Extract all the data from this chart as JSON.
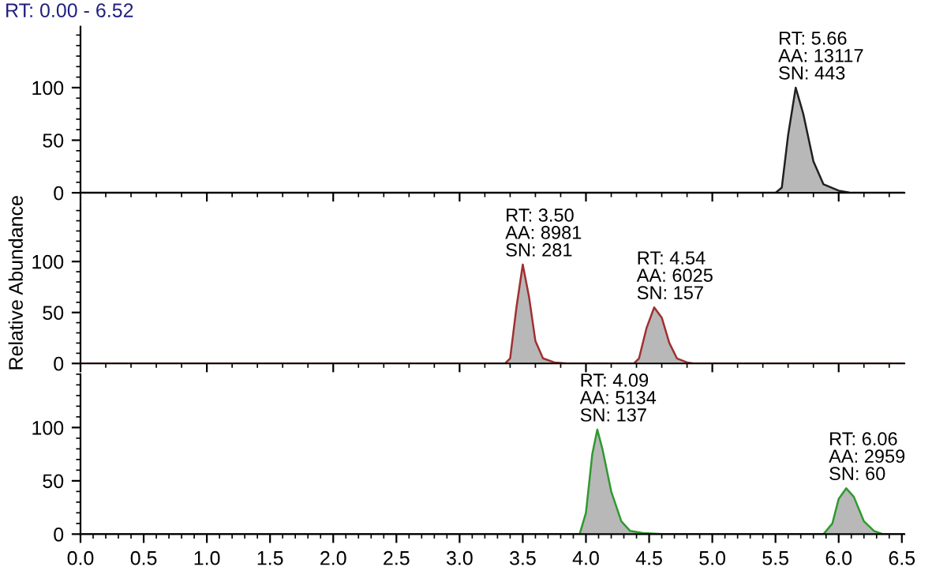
{
  "chart_data": [
    {
      "type": "area",
      "title": "RT: 0.00 - 6.52",
      "x": [
        0,
        5.5,
        5.55,
        5.6,
        5.66,
        5.72,
        5.8,
        5.88,
        6.0,
        6.1,
        6.52
      ],
      "series": [
        {
          "color": "#202020",
          "values": [
            0,
            0,
            5,
            55,
            100,
            75,
            30,
            8,
            2,
            0,
            0
          ]
        }
      ],
      "xlim": [
        0,
        6.52
      ],
      "ylim": [
        0,
        158
      ],
      "yticks": [
        0,
        50,
        100
      ],
      "tick_labels": "y",
      "grid": false,
      "annotations": [
        {
          "text": "RT: 5.66\nAA: 13117\nSN: 443",
          "x": 5.66,
          "y": 100
        }
      ]
    },
    {
      "type": "area",
      "ylabel": "Relative Abundance",
      "x": [
        0,
        3.36,
        3.4,
        3.45,
        3.5,
        3.55,
        3.6,
        3.66,
        3.75,
        3.85,
        4.38,
        4.42,
        4.48,
        4.54,
        4.6,
        4.66,
        4.72,
        4.8,
        4.85,
        6.52
      ],
      "series": [
        {
          "color": "#a03030",
          "values": [
            0,
            0,
            5,
            55,
            97,
            65,
            22,
            5,
            1,
            0,
            0,
            5,
            35,
            55,
            45,
            20,
            5,
            1,
            0,
            0
          ]
        }
      ],
      "xlim": [
        0,
        6.52
      ],
      "ylim": [
        0,
        158
      ],
      "yticks": [
        0,
        50,
        100
      ],
      "tick_labels": "y",
      "grid": false,
      "annotations": [
        {
          "text": "RT: 3.50\nAA: 8981\nSN: 281",
          "x": 3.5,
          "y": 97
        },
        {
          "text": "RT: 4.54\nAA: 6025\nSN: 157",
          "x": 4.54,
          "y": 55
        }
      ]
    },
    {
      "type": "area",
      "x": [
        0,
        3.95,
        4.0,
        4.05,
        4.09,
        4.13,
        4.2,
        4.28,
        4.35,
        4.45,
        4.6,
        5.88,
        5.95,
        6.0,
        6.06,
        6.12,
        6.2,
        6.28,
        6.35,
        6.52
      ],
      "series": [
        {
          "color": "#2e9a2e",
          "values": [
            0,
            0,
            20,
            75,
            98,
            80,
            40,
            12,
            3,
            1,
            0,
            0,
            10,
            33,
            43,
            35,
            12,
            3,
            0,
            0
          ]
        }
      ],
      "xlim": [
        0,
        6.52
      ],
      "xticks": [
        {
          "value": 0,
          "label": "0.0"
        },
        0.5,
        {
          "value": 1,
          "label": "1.0"
        },
        1.5,
        {
          "value": 2,
          "label": "2.0"
        },
        2.5,
        {
          "value": 3,
          "label": "3.0"
        },
        3.5,
        {
          "value": 4,
          "label": "4.0"
        },
        4.5,
        {
          "value": 5,
          "label": "5.0"
        },
        5.5,
        {
          "value": 6,
          "label": "6.0"
        },
        6.5
      ],
      "ylim": [
        0,
        150
      ],
      "yticks": [
        0,
        50,
        100
      ],
      "grid": false,
      "annotations": [
        {
          "text": "RT: 4.09\nAA: 5134\nSN: 137",
          "x": 4.09,
          "y": 98
        },
        {
          "text": "RT: 6.06\nAA: 2959\nSN: 60",
          "x": 6.06,
          "y": 43
        }
      ]
    }
  ]
}
